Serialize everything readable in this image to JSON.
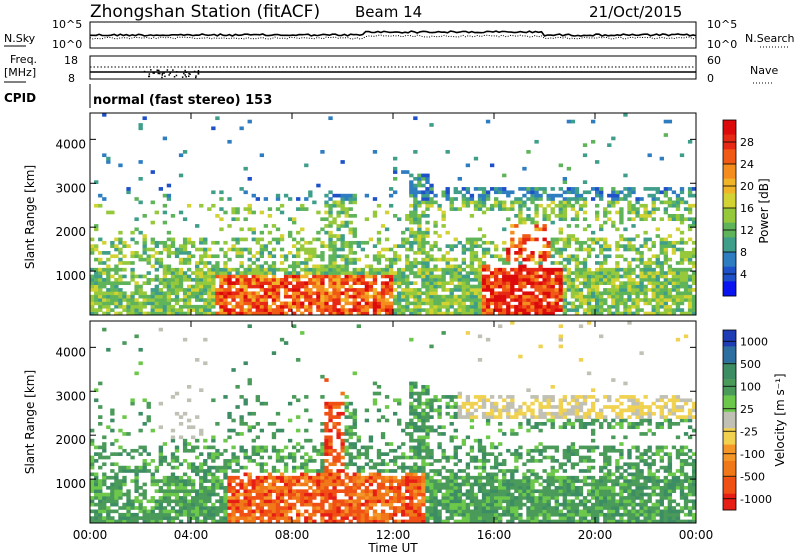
{
  "header": {
    "title": "Zhongshan Station (fitACF)",
    "beam": "Beam 14",
    "date": "21/Oct/2015"
  },
  "noise_panel": {
    "left_label": "N.Sky",
    "right_label": "N.Search",
    "left_ticks": [
      "10^5",
      "10^0"
    ],
    "right_ticks": [
      "10^5",
      "10^0"
    ]
  },
  "freq_panel": {
    "left_label_1": "Freq.",
    "left_label_2": "[MHz]",
    "right_label": "Nave",
    "left_ticks": [
      "18",
      "8"
    ],
    "right_ticks": [
      "60",
      "0"
    ]
  },
  "cpid_panel": {
    "label": "CPID",
    "text": "normal (fast stereo) 153"
  },
  "chart_data": [
    {
      "type": "heatmap",
      "name": "power",
      "ylabel": "Slant Range [km]",
      "yticks": [
        "1000",
        "2000",
        "3000",
        "4000"
      ],
      "colorbar_label": "Power [dB]",
      "colorbar_ticks": [
        "4",
        "8",
        "12",
        "16",
        "20",
        "24",
        "28"
      ],
      "colors": [
        "#0a14f0",
        "#1e50c8",
        "#2d7dc0",
        "#3f9e8a",
        "#5fb45a",
        "#96c83c",
        "#d2d232",
        "#f0b428",
        "#f58c1e",
        "#f05a14",
        "#e62814",
        "#dc0a0a"
      ]
    },
    {
      "type": "heatmap",
      "name": "velocity",
      "ylabel": "Slant Range [km]",
      "yticks": [
        "1000",
        "2000",
        "3000",
        "4000"
      ],
      "colorbar_label": "Velocity [m s⁻¹]",
      "colorbar_ticks": [
        "1000",
        "500",
        "100",
        "25",
        "-25",
        "-100",
        "-500",
        "-1000"
      ],
      "colors": [
        "#1e3cb4",
        "#2d6ea0",
        "#3c8c64",
        "#4a9a5a",
        "#6cc84a",
        "#c0c0b4",
        "#f0d250",
        "#f59628",
        "#f07818",
        "#f05014",
        "#e61e14"
      ]
    }
  ],
  "xaxis": {
    "label": "Time UT",
    "ticks": [
      "00:00",
      "04:00",
      "08:00",
      "12:00",
      "16:00",
      "20:00",
      "00:00"
    ]
  }
}
